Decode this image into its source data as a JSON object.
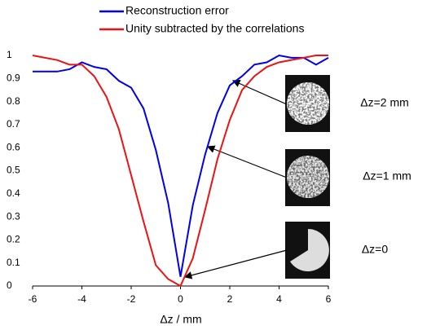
{
  "chart_data": {
    "type": "line",
    "x_label": "Δz / mm",
    "x": [
      -6,
      -5.5,
      -5,
      -4.5,
      -4,
      -3.5,
      -3,
      -2.5,
      -2,
      -1.5,
      -1,
      -0.5,
      0,
      0.5,
      1,
      1.5,
      2,
      2.5,
      3,
      3.5,
      4,
      4.5,
      5,
      5.5,
      6
    ],
    "series": [
      {
        "name": "Reconstruction error",
        "color": "#0000ee",
        "values": [
          0.93,
          0.93,
          0.93,
          0.94,
          0.97,
          0.95,
          0.94,
          0.89,
          0.86,
          0.77,
          0.59,
          0.36,
          0.04,
          0.35,
          0.57,
          0.75,
          0.87,
          0.91,
          0.96,
          0.97,
          1.0,
          0.99,
          0.99,
          0.96,
          0.99
        ]
      },
      {
        "name": "Unity subtracted by the correlations",
        "color": "#ee1111",
        "values": [
          1.0,
          0.99,
          0.98,
          0.96,
          0.96,
          0.91,
          0.82,
          0.68,
          0.48,
          0.28,
          0.09,
          0.03,
          0.0,
          0.12,
          0.33,
          0.55,
          0.72,
          0.85,
          0.91,
          0.95,
          0.97,
          0.98,
          0.99,
          1.0,
          1.0
        ]
      }
    ],
    "xlim": [
      -6,
      6
    ],
    "xticks": [
      -6,
      -4,
      -2,
      0,
      2,
      4,
      6
    ],
    "ylim": [
      0,
      1
    ],
    "yticks": [
      0,
      0.1,
      0.2,
      0.3,
      0.4,
      0.5,
      0.6,
      0.7,
      0.8,
      0.9,
      1
    ],
    "annotations": [
      "Δz=2 mm",
      "Δz=1 mm",
      "Δz=0"
    ]
  }
}
